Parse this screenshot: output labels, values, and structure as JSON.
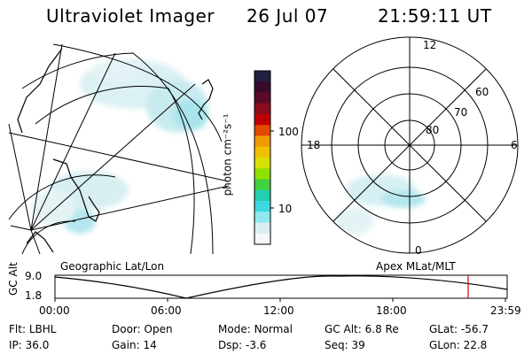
{
  "header": {
    "instrument": "Ultraviolet Imager",
    "date": "26 Jul 07",
    "time": "21:59:11 UT"
  },
  "colorbar": {
    "unit_label": "photon cm⁻²s⁻¹",
    "ticks": [
      "100",
      "10"
    ],
    "colors": [
      "#202040",
      "#3a0a2a",
      "#5c0a2a",
      "#8a0a1e",
      "#c00000",
      "#e24a00",
      "#f09a00",
      "#f0c000",
      "#d8e000",
      "#90e000",
      "#40d040",
      "#20d0b0",
      "#40d8e0",
      "#90e8f0",
      "#d8eef0",
      "#f4f8f8"
    ]
  },
  "map_panels": {
    "left_label": "Geographic Lat/Lon",
    "right_label": "Apex  MLat/MLT",
    "polar_lat_labels": [
      "60",
      "70",
      "80"
    ],
    "polar_mlt_labels": [
      "12",
      "18",
      "6",
      "0"
    ]
  },
  "timeline": {
    "axis_label": "GC Alt",
    "y_ticks": [
      "9.0",
      "1.8"
    ],
    "x_ticks": [
      "00:00",
      "06:00",
      "12:00",
      "18:00",
      "23:59"
    ],
    "marker_color": "#d00000"
  },
  "status": {
    "row1": [
      {
        "label": "Flt:",
        "value": "LBHL"
      },
      {
        "label": "Door:",
        "value": "Open"
      },
      {
        "label": "Mode:",
        "value": "Normal"
      },
      {
        "label": "GC Alt:",
        "value": "6.8 Re"
      },
      {
        "label": "GLat:",
        "value": "-56.7"
      }
    ],
    "row2": [
      {
        "label": "IP:",
        "value": "36.0"
      },
      {
        "label": "Gain:",
        "value": "14"
      },
      {
        "label": "Dsp:",
        "value": "-3.6"
      },
      {
        "label": "Seq:",
        "value": "39"
      },
      {
        "label": "GLon:",
        "value": "22.8"
      }
    ]
  }
}
